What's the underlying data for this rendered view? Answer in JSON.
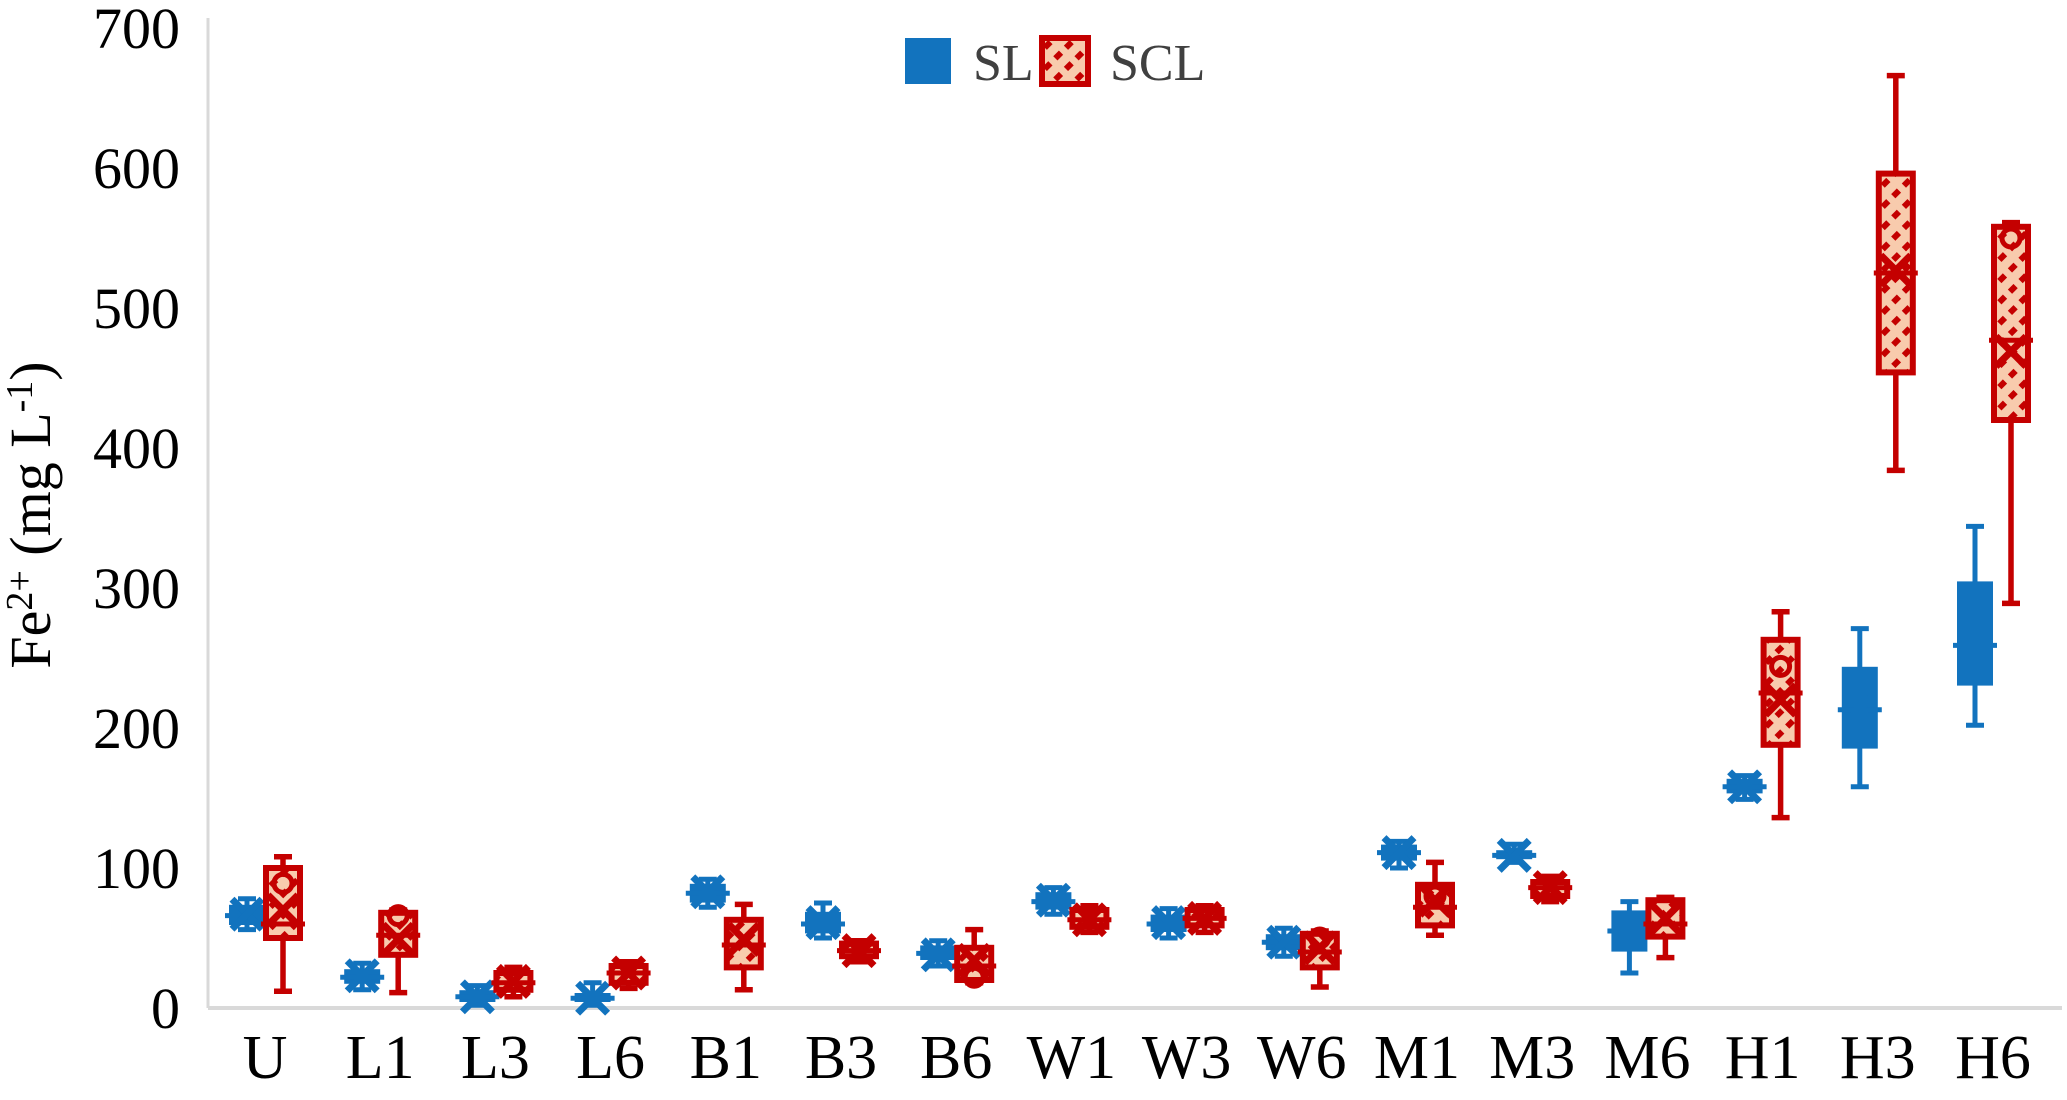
{
  "chart_data": {
    "type": "boxplot",
    "title": "",
    "ylabel": "Fe2+ (mg L-1)",
    "ylabel_parts": [
      {
        "t": "Fe"
      },
      {
        "t": "2+",
        "sup": true
      },
      {
        "t": " (mg L"
      },
      {
        "t": "-1",
        "sup": true
      },
      {
        "t": ")"
      }
    ],
    "xlabel": "",
    "ylim": [
      0,
      700
    ],
    "yticks": [
      0,
      100,
      200,
      300,
      400,
      500,
      600,
      700
    ],
    "grid": false,
    "legend_position": "top-center",
    "axis_color": "#D9D9D9",
    "tick_label_color": "#000000",
    "legend_text_color": "#404040",
    "categories": [
      "U",
      "L1",
      "L3",
      "L6",
      "B1",
      "B3",
      "B6",
      "W1",
      "W3",
      "W6",
      "M1",
      "M3",
      "M6",
      "H1",
      "H3",
      "H6"
    ],
    "series": [
      {
        "name": "SL",
        "style": "solid",
        "color": "#1273BE",
        "fill": "#1273BE",
        "boxes": [
          {
            "low": 56,
            "q1": 60,
            "median": 66,
            "q3": 73,
            "high": 78,
            "mean": 67,
            "outliers": []
          },
          {
            "low": 13,
            "q1": 18,
            "median": 22,
            "q3": 27,
            "high": 32,
            "mean": 23,
            "outliers": []
          },
          {
            "low": 2,
            "q1": 5,
            "median": 8,
            "q3": 12,
            "high": 16,
            "mean": 8,
            "outliers": []
          },
          {
            "low": 2,
            "q1": 5,
            "median": 7,
            "q3": 10,
            "high": 18,
            "mean": 7,
            "outliers": []
          },
          {
            "low": 72,
            "q1": 76,
            "median": 82,
            "q3": 88,
            "high": 92,
            "mean": 83,
            "outliers": []
          },
          {
            "low": 50,
            "q1": 54,
            "median": 60,
            "q3": 68,
            "high": 75,
            "mean": 61,
            "outliers": []
          },
          {
            "low": 30,
            "q1": 35,
            "median": 39,
            "q3": 44,
            "high": 48,
            "mean": 38,
            "outliers": []
          },
          {
            "low": 67,
            "q1": 71,
            "median": 76,
            "q3": 82,
            "high": 86,
            "mean": 77,
            "outliers": []
          },
          {
            "low": 50,
            "q1": 55,
            "median": 60,
            "q3": 66,
            "high": 71,
            "mean": 61,
            "outliers": []
          },
          {
            "low": 37,
            "q1": 42,
            "median": 47,
            "q3": 52,
            "high": 57,
            "mean": 47,
            "outliers": []
          },
          {
            "low": 100,
            "q1": 106,
            "median": 111,
            "q3": 116,
            "high": 119,
            "mean": 111,
            "outliers": []
          },
          {
            "low": 104,
            "q1": 107,
            "median": 109,
            "q3": 112,
            "high": 117,
            "mean": 109,
            "outliers": []
          },
          {
            "low": 25,
            "q1": 41,
            "median": 55,
            "q3": 69,
            "high": 76,
            "mean": 55,
            "outliers": []
          },
          {
            "low": 149,
            "q1": 154,
            "median": 158,
            "q3": 163,
            "high": 166,
            "mean": 158,
            "outliers": []
          },
          {
            "low": 158,
            "q1": 186,
            "median": 213,
            "q3": 243,
            "high": 271,
            "mean": 214,
            "outliers": []
          },
          {
            "low": 202,
            "q1": 231,
            "median": 259,
            "q3": 304,
            "high": 344,
            "mean": 276,
            "outliers": []
          }
        ]
      },
      {
        "name": "SCL",
        "style": "hatched",
        "color": "#C40000",
        "fill": "#F8CBAD",
        "boxes": [
          {
            "low": 12,
            "q1": 50,
            "median": 60,
            "q3": 100,
            "high": 108,
            "mean": 70,
            "outliers": [
              89
            ]
          },
          {
            "low": 11,
            "q1": 38,
            "median": 52,
            "q3": 68,
            "high": 70,
            "mean": 49,
            "outliers": [
              66
            ]
          },
          {
            "low": 8,
            "q1": 13,
            "median": 18,
            "q3": 25,
            "high": 29,
            "mean": 19,
            "outliers": []
          },
          {
            "low": 14,
            "q1": 18,
            "median": 25,
            "q3": 30,
            "high": 33,
            "mean": 25,
            "outliers": []
          },
          {
            "low": 13,
            "q1": 29,
            "median": 45,
            "q3": 63,
            "high": 74,
            "mean": 49,
            "outliers": []
          },
          {
            "low": 33,
            "q1": 37,
            "median": 41,
            "q3": 46,
            "high": 48,
            "mean": 41,
            "outliers": []
          },
          {
            "low": 18,
            "q1": 20,
            "median": 30,
            "q3": 43,
            "high": 56,
            "mean": 34,
            "outliers": [
              22
            ]
          },
          {
            "low": 54,
            "q1": 58,
            "median": 63,
            "q3": 70,
            "high": 73,
            "mean": 63,
            "outliers": []
          },
          {
            "low": 54,
            "q1": 59,
            "median": 64,
            "q3": 70,
            "high": 73,
            "mean": 64,
            "outliers": []
          },
          {
            "low": 15,
            "q1": 29,
            "median": 40,
            "q3": 53,
            "high": 55,
            "mean": 43,
            "outliers": [
              50
            ]
          },
          {
            "low": 52,
            "q1": 59,
            "median": 72,
            "q3": 88,
            "high": 104,
            "mean": 77,
            "outliers": [
              80
            ]
          },
          {
            "low": 76,
            "q1": 80,
            "median": 86,
            "q3": 90,
            "high": 94,
            "mean": 86,
            "outliers": []
          },
          {
            "low": 36,
            "q1": 51,
            "median": 60,
            "q3": 77,
            "high": 79,
            "mean": 64,
            "outliers": []
          },
          {
            "low": 136,
            "q1": 188,
            "median": 225,
            "q3": 263,
            "high": 283,
            "mean": 220,
            "outliers": [
              244
            ]
          },
          {
            "low": 384,
            "q1": 454,
            "median": 525,
            "q3": 596,
            "high": 666,
            "mean": 527,
            "outliers": []
          },
          {
            "low": 289,
            "q1": 420,
            "median": 477,
            "q3": 558,
            "high": 561,
            "mean": 469,
            "outliers": [
              550
            ]
          }
        ]
      }
    ]
  }
}
